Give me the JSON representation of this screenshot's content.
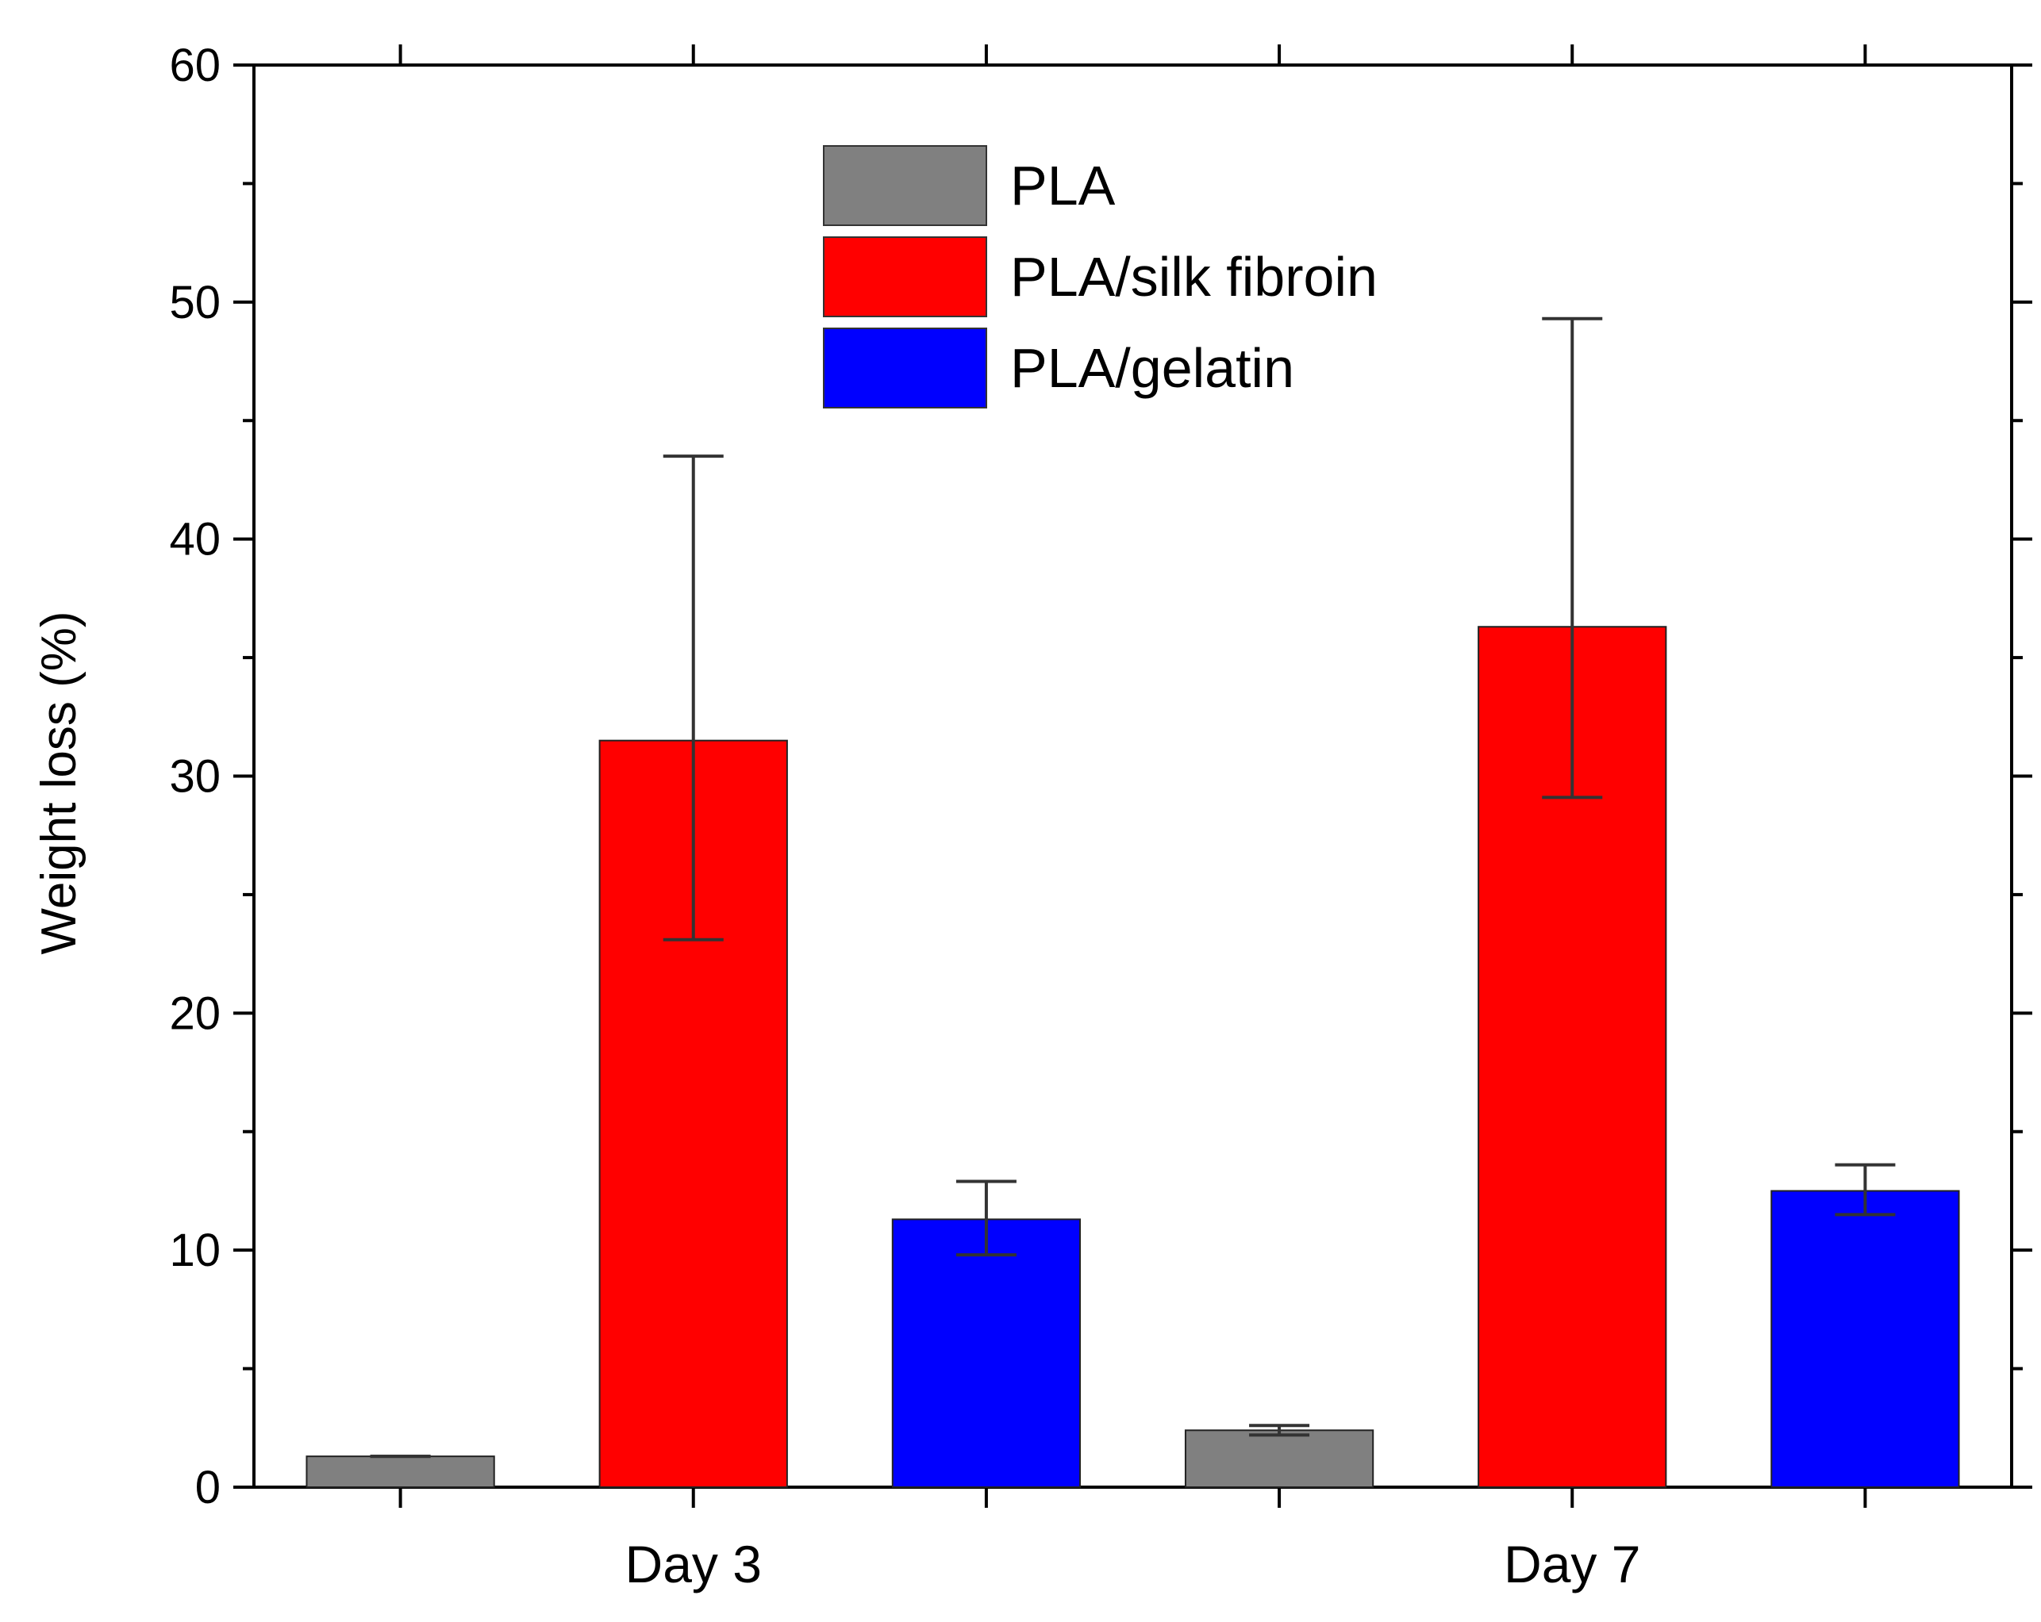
{
  "chart_data": {
    "type": "bar",
    "title": "",
    "xlabel": "",
    "ylabel": "Weight loss (%)",
    "ylim": [
      0,
      60
    ],
    "yticks": [
      0,
      10,
      20,
      30,
      40,
      50,
      60
    ],
    "ytick_labels": [
      "0",
      "10",
      "20",
      "30",
      "40",
      "50",
      "60"
    ],
    "categories": [
      "Day 3",
      "Day 7"
    ],
    "legend_position": "top-center",
    "grid": false,
    "series": [
      {
        "name": "PLA",
        "color": "#808080",
        "values": [
          1.3,
          2.4
        ],
        "error_low": [
          1.3,
          2.2
        ],
        "error_high": [
          1.3,
          2.6
        ]
      },
      {
        "name": "PLA/silk fibroin",
        "color": "#ff0000",
        "values": [
          31.5,
          36.3
        ],
        "error_low": [
          23.1,
          29.1
        ],
        "error_high": [
          43.5,
          49.3
        ]
      },
      {
        "name": "PLA/gelatin",
        "color": "#0000ff",
        "values": [
          11.3,
          12.5
        ],
        "error_low": [
          9.8,
          11.5
        ],
        "error_high": [
          12.9,
          13.6
        ]
      }
    ]
  }
}
